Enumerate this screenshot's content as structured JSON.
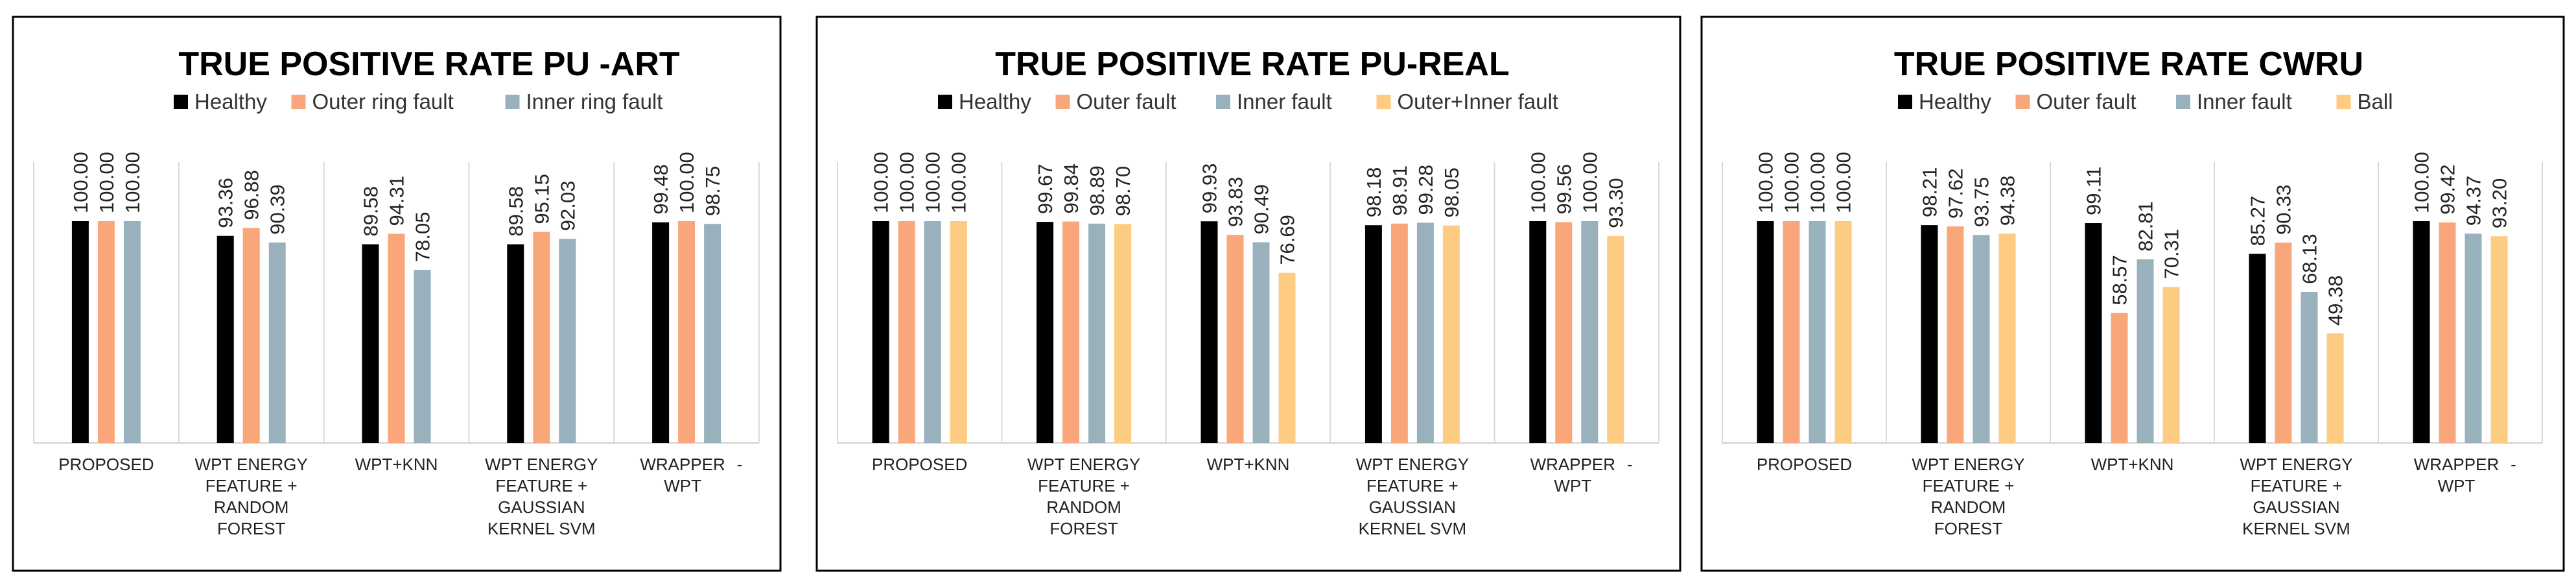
{
  "chart_data": [
    {
      "type": "bar",
      "title": "TRUE POSITIVE RATE PU -ART",
      "categories": [
        [
          "PROPOSED"
        ],
        [
          "WPT ENERGY",
          "FEATURE +",
          "RANDOM",
          "FOREST"
        ],
        [
          "WPT+KNN"
        ],
        [
          "WPT ENERGY",
          "FEATURE +",
          "GAUSSIAN",
          "KERNEL SVM"
        ],
        [
          "WRAPPER",
          "WPT",
          "-"
        ]
      ],
      "series": [
        {
          "name": "Healthy",
          "color": "#000000",
          "values": [
            100.0,
            93.36,
            89.58,
            89.58,
            99.48
          ]
        },
        {
          "name": "Outer ring fault",
          "color": "#F9A77A",
          "values": [
            100.0,
            96.88,
            94.31,
            95.15,
            100.0
          ]
        },
        {
          "name": "Inner ring fault",
          "color": "#98B1BC",
          "values": [
            100.0,
            90.39,
            78.05,
            92.03,
            98.75
          ]
        }
      ],
      "ylim": [
        0,
        100
      ],
      "legend": "top",
      "grid": false
    },
    {
      "type": "bar",
      "title": "TRUE POSITIVE RATE PU-REAL",
      "categories": [
        [
          "PROPOSED"
        ],
        [
          "WPT ENERGY",
          "FEATURE +",
          "RANDOM",
          "FOREST"
        ],
        [
          "WPT+KNN"
        ],
        [
          "WPT ENERGY",
          "FEATURE +",
          "GAUSSIAN",
          "KERNEL SVM"
        ],
        [
          "WRAPPER",
          "WPT",
          "-"
        ]
      ],
      "series": [
        {
          "name": "Healthy",
          "color": "#000000",
          "values": [
            100.0,
            99.67,
            99.93,
            98.18,
            100.0
          ]
        },
        {
          "name": "Outer fault",
          "color": "#F9A77A",
          "values": [
            100.0,
            99.84,
            93.83,
            98.91,
            99.56
          ]
        },
        {
          "name": "Inner fault",
          "color": "#98B1BC",
          "values": [
            100.0,
            98.89,
            90.49,
            99.28,
            100.0
          ]
        },
        {
          "name": "Outer+Inner fault",
          "color": "#FDCB82",
          "values": [
            100.0,
            98.7,
            76.69,
            98.05,
            93.3
          ]
        }
      ],
      "ylim": [
        0,
        100
      ],
      "legend": "top",
      "grid": false
    },
    {
      "type": "bar",
      "title": "TRUE POSITIVE RATE CWRU",
      "categories": [
        [
          "PROPOSED"
        ],
        [
          "WPT ENERGY",
          "FEATURE +",
          "RANDOM",
          "FOREST"
        ],
        [
          "WPT+KNN"
        ],
        [
          "WPT ENERGY",
          "FEATURE +",
          "GAUSSIAN",
          "KERNEL SVM"
        ],
        [
          "WRAPPER",
          "WPT",
          "-"
        ]
      ],
      "series": [
        {
          "name": "Healthy",
          "color": "#000000",
          "values": [
            100.0,
            98.21,
            99.11,
            85.27,
            100.0
          ]
        },
        {
          "name": "Outer fault",
          "color": "#F9A77A",
          "values": [
            100.0,
            97.62,
            58.57,
            90.33,
            99.42
          ]
        },
        {
          "name": "Inner fault",
          "color": "#98B1BC",
          "values": [
            100.0,
            93.75,
            82.81,
            68.13,
            94.37
          ]
        },
        {
          "name": "Ball",
          "color": "#FDCB82",
          "values": [
            100.0,
            94.38,
            70.31,
            49.38,
            93.2
          ]
        }
      ],
      "ylim": [
        0,
        100
      ],
      "legend": "top",
      "grid": false
    }
  ]
}
